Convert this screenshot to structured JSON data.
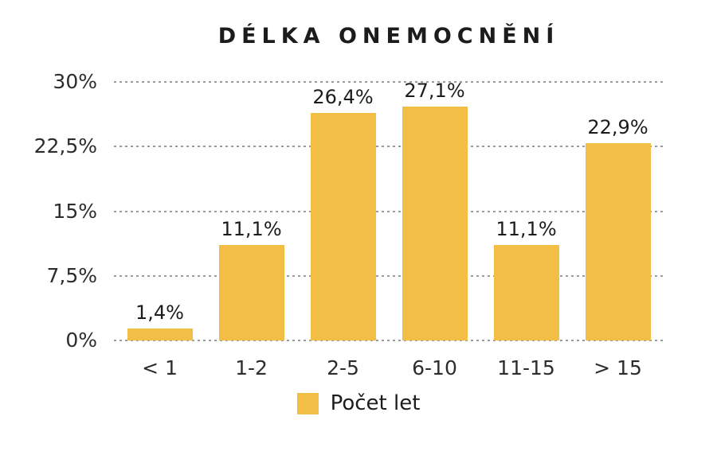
{
  "title": "DÉLKA ONEMOCNĚNÍ",
  "colors": {
    "bar": "#F2BE45",
    "grid": "#9B9B9B",
    "title_text": "#1C1C1C",
    "axis_text": "#2D2D2D",
    "background": "#FFFFFF"
  },
  "legend": {
    "label": "Počet let",
    "swatch_color": "#F2BE45",
    "position": "bottom-center"
  },
  "chart_data": {
    "type": "bar",
    "title": "DÉLKA ONEMOCNĚNÍ",
    "series_name": "Počet let",
    "categories": [
      "< 1",
      "1-2",
      "2-5",
      "6-10",
      "11-15",
      "> 15"
    ],
    "values": [
      1.4,
      11.1,
      26.4,
      27.1,
      11.1,
      22.9
    ],
    "value_labels": [
      "1,4%",
      "11,1%",
      "26,4%",
      "27,1%",
      "11,1%",
      "22,9%"
    ],
    "xlabel": "",
    "ylabel": "",
    "ylim": [
      0,
      30
    ],
    "yticks": [
      0,
      7.5,
      15,
      22.5,
      30
    ],
    "ytick_labels": [
      "0%",
      "7,5%",
      "15%",
      "22,5%",
      "30%"
    ],
    "grid": "horizontal-dashed",
    "legend_position": "bottom"
  }
}
